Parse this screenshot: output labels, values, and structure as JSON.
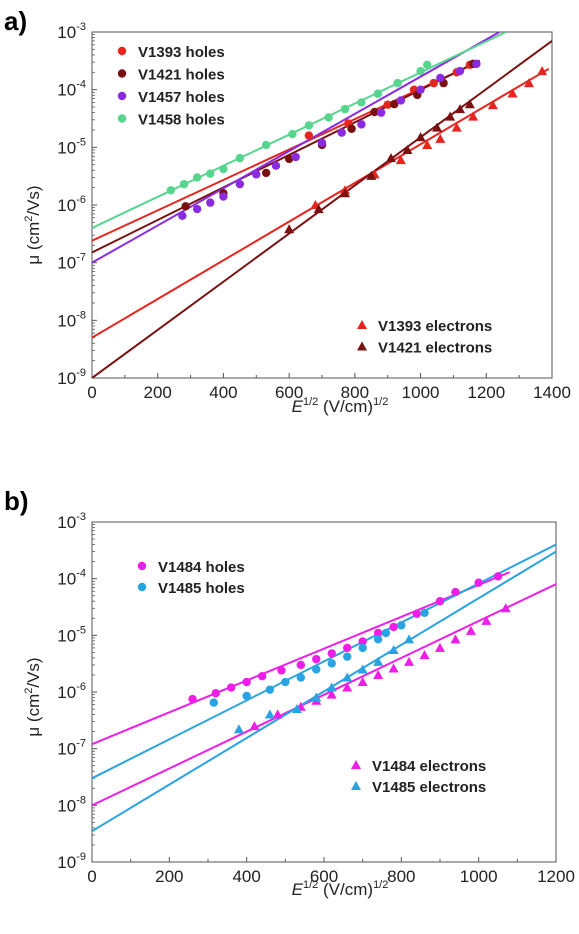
{
  "chart_data": [
    {
      "type": "scatter",
      "panel_label": "a)",
      "xlabel": "E^{1/2} (V/cm)^{1/2}",
      "xlabel_parts": {
        "base": "E",
        "sup": "1/2",
        "rest": " (V/cm)",
        "sup2": "1/2"
      },
      "ylabel": "μ (cm²/Vs)",
      "ylabel_parts": {
        "pre": "μ  (cm",
        "sup": "2",
        "post": "/Vs)"
      },
      "xlim": [
        0,
        1400
      ],
      "ylim": [
        1e-09,
        0.001
      ],
      "yscale": "log",
      "xticks": [
        "0",
        "200",
        "400",
        "600",
        "800",
        "1000",
        "1200",
        "1400"
      ],
      "yticks": [
        {
          "base": "10",
          "exp": "-9"
        },
        {
          "base": "10",
          "exp": "-8"
        },
        {
          "base": "10",
          "exp": "-7"
        },
        {
          "base": "10",
          "exp": "-6"
        },
        {
          "base": "10",
          "exp": "-5"
        },
        {
          "base": "10",
          "exp": "-4"
        },
        {
          "base": "10",
          "exp": "-3"
        }
      ],
      "grid": false,
      "legends": [
        {
          "placement": "top-left",
          "entries": [
            "V1393 holes",
            "V1421 holes",
            "V1457 holes",
            "V1458 holes"
          ]
        },
        {
          "placement": "bottom-right",
          "entries": [
            "V1393 electrons",
            "V1421 electrons"
          ]
        }
      ],
      "series": [
        {
          "name": "V1393 holes",
          "marker": "circle",
          "color": "#e8241f",
          "fit": {
            "x": [
              0,
              1180
            ],
            "y": [
              2.4e-07,
              0.00031
            ]
          },
          "x": [
            660,
            780,
            900,
            980,
            1040,
            1110,
            1150
          ],
          "y": [
            1.6e-05,
            2.6e-05,
            5.5e-05,
            0.0001,
            0.00013,
            0.0002,
            0.00027
          ]
        },
        {
          "name": "V1421 holes",
          "marker": "circle",
          "color": "#7a1010",
          "fit": {
            "x": [
              0,
              1180
            ],
            "y": [
              1.5e-07,
              0.00032
            ]
          },
          "x": [
            285,
            400,
            530,
            600,
            700,
            790,
            860,
            920,
            990,
            1070,
            1160
          ],
          "y": [
            9.5e-07,
            1.6e-06,
            3.6e-06,
            6.3e-06,
            1.1e-05,
            2.1e-05,
            4.1e-05,
            5.6e-05,
            8.1e-05,
            0.00013,
            0.00028
          ]
        },
        {
          "name": "V1457 holes",
          "marker": "circle",
          "color": "#8a2be2",
          "fit": {
            "x": [
              0,
              1240
            ],
            "y": [
              1e-07,
              0.001
            ]
          },
          "x": [
            275,
            320,
            360,
            400,
            450,
            500,
            560,
            620,
            700,
            760,
            820,
            880,
            940,
            1000,
            1060,
            1120,
            1170
          ],
          "y": [
            6.5e-07,
            8.5e-07,
            1.1e-06,
            1.4e-06,
            2.3e-06,
            3.4e-06,
            4.8e-06,
            6.8e-06,
            1.2e-05,
            1.8e-05,
            2.5e-05,
            4e-05,
            6.5e-05,
            0.0001,
            0.00016,
            0.00021,
            0.00028
          ]
        },
        {
          "name": "V1458 holes",
          "marker": "circle",
          "color": "#56d58e",
          "fit": {
            "x": [
              0,
              1260
            ],
            "y": [
              4e-07,
              0.001
            ]
          },
          "x": [
            240,
            280,
            320,
            360,
            400,
            450,
            530,
            610,
            660,
            720,
            770,
            820,
            870,
            930,
            1000,
            1020
          ],
          "y": [
            1.8e-06,
            2.3e-06,
            3e-06,
            3.5e-06,
            4.2e-06,
            6.5e-06,
            1.1e-05,
            1.7e-05,
            2.4e-05,
            3.3e-05,
            4.6e-05,
            6e-05,
            8.5e-05,
            0.00013,
            0.00021,
            0.00027
          ]
        },
        {
          "name": "V1393 electrons",
          "marker": "triangle",
          "color": "#e8241f",
          "fit": {
            "x": [
              0,
              1390
            ],
            "y": [
              5e-09,
              0.00023
            ]
          },
          "x": [
            680,
            770,
            860,
            940,
            1020,
            1060,
            1110,
            1160,
            1220,
            1280,
            1330,
            1370
          ],
          "y": [
            1e-06,
            1.8e-06,
            3.4e-06,
            6e-06,
            1.1e-05,
            1.4e-05,
            2.2e-05,
            3.4e-05,
            5.4e-05,
            8.6e-05,
            0.00013,
            0.00021
          ]
        },
        {
          "name": "V1421 electrons",
          "marker": "triangle",
          "color": "#7a1010",
          "fit": {
            "x": [
              0,
              1400
            ],
            "y": [
              1e-09,
              0.0007
            ]
          },
          "x": [
            600,
            690,
            770,
            850,
            910,
            960,
            1000,
            1050,
            1090,
            1120,
            1150
          ],
          "y": [
            3.8e-07,
            8.5e-07,
            1.6e-06,
            3.2e-06,
            6.5e-06,
            9e-06,
            1.5e-05,
            2.2e-05,
            3.4e-05,
            4.6e-05,
            5.6e-05
          ]
        }
      ]
    },
    {
      "type": "scatter",
      "panel_label": "b)",
      "xlabel": "E^{1/2} (V/cm)^{1/2}",
      "xlabel_parts": {
        "base": "E",
        "sup": "1/2",
        "rest": " (V/cm)",
        "sup2": "1/2"
      },
      "ylabel": "μ (cm²/Vs)",
      "ylabel_parts": {
        "pre": "μ  (cm",
        "sup": "2",
        "post": "/Vs)"
      },
      "xlim": [
        0,
        1200
      ],
      "ylim": [
        1e-09,
        0.001
      ],
      "yscale": "log",
      "xticks": [
        "0",
        "200",
        "400",
        "600",
        "800",
        "1000",
        "1200"
      ],
      "yticks": [
        {
          "base": "10",
          "exp": "-9"
        },
        {
          "base": "10",
          "exp": "-8"
        },
        {
          "base": "10",
          "exp": "-7"
        },
        {
          "base": "10",
          "exp": "-6"
        },
        {
          "base": "10",
          "exp": "-5"
        },
        {
          "base": "10",
          "exp": "-4"
        },
        {
          "base": "10",
          "exp": "-3"
        }
      ],
      "grid": false,
      "legends": [
        {
          "placement": "top-left",
          "entries": [
            "V1484 holes",
            "V1485 holes"
          ]
        },
        {
          "placement": "bottom-right",
          "entries": [
            "V1484 electrons",
            "V1485 electrons"
          ]
        }
      ],
      "series": [
        {
          "name": "V1484 holes",
          "marker": "circle",
          "color": "#ee1ee8",
          "fit": {
            "x": [
              0,
              1080
            ],
            "y": [
              1.2e-07,
              0.00013
            ]
          },
          "x": [
            260,
            320,
            360,
            400,
            440,
            490,
            540,
            580,
            620,
            660,
            700,
            740,
            780,
            840,
            900,
            940,
            1000,
            1050
          ],
          "y": [
            7.5e-07,
            9.5e-07,
            1.2e-06,
            1.5e-06,
            1.9e-06,
            2.4e-06,
            3e-06,
            3.8e-06,
            4.8e-06,
            6e-06,
            7.8e-06,
            1.1e-05,
            1.4e-05,
            2.4e-05,
            4e-05,
            5.8e-05,
            8.5e-05,
            0.00011
          ]
        },
        {
          "name": "V1485 holes",
          "marker": "circle",
          "color": "#2aa3e3",
          "fit": {
            "x": [
              0,
              1200
            ],
            "y": [
              3e-08,
              0.0004
            ]
          },
          "x": [
            315,
            400,
            460,
            500,
            540,
            580,
            620,
            660,
            700,
            740,
            760,
            800,
            860
          ],
          "y": [
            6.5e-07,
            8.5e-07,
            1.1e-06,
            1.5e-06,
            1.8e-06,
            2.5e-06,
            3.2e-06,
            4.2e-06,
            6e-06,
            8.5e-06,
            1.1e-05,
            1.5e-05,
            2.5e-05
          ]
        },
        {
          "name": "V1484 electrons",
          "marker": "triangle",
          "color": "#ee1ee8",
          "fit": {
            "x": [
              0,
              1200
            ],
            "y": [
              1e-08,
              8e-05
            ]
          },
          "x": [
            420,
            480,
            540,
            580,
            620,
            660,
            700,
            740,
            780,
            820,
            860,
            900,
            940,
            980,
            1020,
            1070
          ],
          "y": [
            2.5e-07,
            4e-07,
            5.5e-07,
            7e-07,
            9e-07,
            1.2e-06,
            1.5e-06,
            2e-06,
            2.6e-06,
            3.4e-06,
            4.5e-06,
            6e-06,
            8.5e-06,
            1.2e-05,
            1.8e-05,
            3e-05
          ]
        },
        {
          "name": "V1485 electrons",
          "marker": "triangle",
          "color": "#2aa3e3",
          "fit": {
            "x": [
              0,
              1200
            ],
            "y": [
              3.5e-09,
              0.0003
            ]
          },
          "x": [
            380,
            460,
            530,
            580,
            620,
            660,
            700,
            740,
            780,
            820
          ],
          "y": [
            2.2e-07,
            4e-07,
            5e-07,
            8e-07,
            1.2e-06,
            1.8e-06,
            2.5e-06,
            3.4e-06,
            5.5e-06,
            8.5e-06
          ]
        }
      ]
    }
  ]
}
